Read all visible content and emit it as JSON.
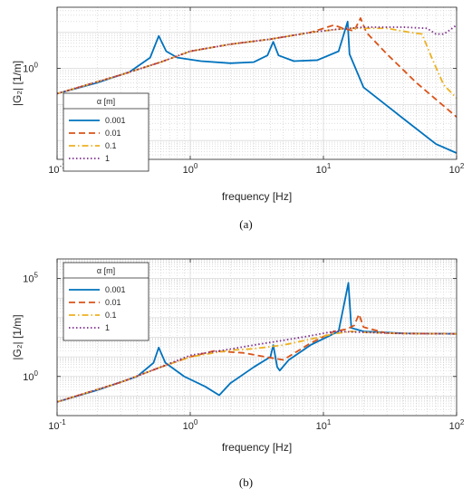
{
  "chart_data": [
    {
      "type": "line",
      "panel_label": "(a)",
      "xlabel": "frequency [Hz]",
      "ylabel": "|G₂| [1/m]",
      "xscale": "log",
      "yscale": "log",
      "xlim": [
        0.1,
        100
      ],
      "ylim": [
        0.003,
        50
      ],
      "grid": true,
      "legend_title": "α [m]",
      "legend_position": "lower-left",
      "x_ticks": [
        {
          "value": 0.1,
          "base": "10",
          "exp": "-1"
        },
        {
          "value": 1,
          "base": "10",
          "exp": "0"
        },
        {
          "value": 10,
          "base": "10",
          "exp": "1"
        },
        {
          "value": 100,
          "base": "10",
          "exp": "2"
        }
      ],
      "y_ticks": [
        {
          "value": 1,
          "base": "10",
          "exp": "0"
        }
      ],
      "series": [
        {
          "name": "0.001",
          "color": "#0072BD",
          "dash": "solid",
          "points": [
            [
              0.1,
              0.2
            ],
            [
              0.2,
              0.4
            ],
            [
              0.35,
              0.8
            ],
            [
              0.5,
              2
            ],
            [
              0.58,
              8
            ],
            [
              0.66,
              3
            ],
            [
              0.8,
              2
            ],
            [
              1.2,
              1.6
            ],
            [
              2,
              1.4
            ],
            [
              3,
              1.5
            ],
            [
              3.8,
              2.3
            ],
            [
              4.2,
              5.5
            ],
            [
              4.6,
              2.3
            ],
            [
              6,
              1.6
            ],
            [
              9,
              1.7
            ],
            [
              13,
              3
            ],
            [
              15.2,
              20
            ],
            [
              15.7,
              2.5
            ],
            [
              20,
              0.3
            ],
            [
              40,
              0.04
            ],
            [
              70,
              0.008
            ],
            [
              100,
              0.0045
            ]
          ]
        },
        {
          "name": "0.01",
          "color": "#D95319",
          "dash": "dashed",
          "points": [
            [
              0.1,
              0.2
            ],
            [
              0.3,
              0.66
            ],
            [
              0.6,
              1.5
            ],
            [
              1,
              3
            ],
            [
              2,
              4.7
            ],
            [
              4,
              6.5
            ],
            [
              8,
              10
            ],
            [
              12,
              16
            ],
            [
              14,
              13
            ],
            [
              17,
              11
            ],
            [
              19,
              25
            ],
            [
              21,
              10
            ],
            [
              30,
              2.5
            ],
            [
              50,
              0.4
            ],
            [
              100,
              0.045
            ]
          ]
        },
        {
          "name": "0.1",
          "color": "#EDB120",
          "dash": "dashdot",
          "points": [
            [
              0.1,
              0.2
            ],
            [
              0.3,
              0.66
            ],
            [
              0.6,
              1.5
            ],
            [
              1,
              3
            ],
            [
              2,
              4.7
            ],
            [
              4,
              6.5
            ],
            [
              8,
              10
            ],
            [
              15,
              13
            ],
            [
              30,
              13
            ],
            [
              45,
              10
            ],
            [
              55,
              9
            ],
            [
              65,
              2
            ],
            [
              80,
              0.35
            ],
            [
              100,
              0.15
            ]
          ]
        },
        {
          "name": "1",
          "color": "#7E2F8E",
          "dash": "dotted",
          "points": [
            [
              0.1,
              0.2
            ],
            [
              0.3,
              0.66
            ],
            [
              0.6,
              1.5
            ],
            [
              1,
              3
            ],
            [
              2,
              4.7
            ],
            [
              4,
              6.5
            ],
            [
              8,
              10
            ],
            [
              12,
              12
            ],
            [
              20,
              14
            ],
            [
              40,
              14
            ],
            [
              60,
              13
            ],
            [
              70,
              9
            ],
            [
              80,
              9
            ],
            [
              90,
              12
            ],
            [
              100,
              16
            ]
          ]
        }
      ]
    },
    {
      "type": "line",
      "panel_label": "(b)",
      "xlabel": "frequency [Hz]",
      "ylabel": "|G₂| [1/m]",
      "xscale": "log",
      "yscale": "log",
      "xlim": [
        0.1,
        100
      ],
      "ylim": [
        0.01,
        1000000
      ],
      "grid": true,
      "legend_title": "α [m]",
      "legend_position": "top-left",
      "x_ticks": [
        {
          "value": 0.1,
          "base": "10",
          "exp": "-1"
        },
        {
          "value": 1,
          "base": "10",
          "exp": "0"
        },
        {
          "value": 10,
          "base": "10",
          "exp": "1"
        },
        {
          "value": 100,
          "base": "10",
          "exp": "2"
        }
      ],
      "y_ticks": [
        {
          "value": 1,
          "base": "10",
          "exp": "0"
        },
        {
          "value": 100000,
          "base": "10",
          "exp": "5"
        }
      ],
      "series": [
        {
          "name": "0.001",
          "color": "#0072BD",
          "dash": "solid",
          "points": [
            [
              0.1,
              0.05
            ],
            [
              0.2,
              0.2
            ],
            [
              0.4,
              1
            ],
            [
              0.53,
              5
            ],
            [
              0.58,
              30
            ],
            [
              0.65,
              5
            ],
            [
              0.9,
              1
            ],
            [
              1.3,
              0.3
            ],
            [
              1.65,
              0.11
            ],
            [
              2,
              0.45
            ],
            [
              3,
              3
            ],
            [
              4,
              10
            ],
            [
              4.2,
              40
            ],
            [
              4.5,
              3
            ],
            [
              4.7,
              2
            ],
            [
              5.5,
              7
            ],
            [
              8,
              40
            ],
            [
              13,
              200
            ],
            [
              15.4,
              60000
            ],
            [
              16.2,
              300
            ],
            [
              20,
              200
            ],
            [
              40,
              160
            ],
            [
              100,
              150
            ]
          ]
        },
        {
          "name": "0.01",
          "color": "#D95319",
          "dash": "dashed",
          "points": [
            [
              0.1,
              0.05
            ],
            [
              0.3,
              0.5
            ],
            [
              0.6,
              3
            ],
            [
              1,
              10
            ],
            [
              1.5,
              20
            ],
            [
              2.5,
              16
            ],
            [
              4,
              9
            ],
            [
              5,
              7
            ],
            [
              8,
              50
            ],
            [
              12,
              200
            ],
            [
              15,
              260
            ],
            [
              17,
              400
            ],
            [
              18.5,
              1500
            ],
            [
              20,
              330
            ],
            [
              30,
              160
            ],
            [
              100,
              150
            ]
          ]
        },
        {
          "name": "0.1",
          "color": "#EDB120",
          "dash": "dashdot",
          "points": [
            [
              0.1,
              0.05
            ],
            [
              0.3,
              0.5
            ],
            [
              0.6,
              3
            ],
            [
              1,
              10
            ],
            [
              2,
              22
            ],
            [
              3,
              26
            ],
            [
              5,
              40
            ],
            [
              8,
              80
            ],
            [
              12,
              150
            ],
            [
              16,
              200
            ],
            [
              20,
              180
            ],
            [
              40,
              155
            ],
            [
              100,
              150
            ]
          ]
        },
        {
          "name": "1",
          "color": "#7E2F8E",
          "dash": "dotted",
          "points": [
            [
              0.1,
              0.05
            ],
            [
              0.3,
              0.5
            ],
            [
              0.6,
              3
            ],
            [
              1,
              12
            ],
            [
              2,
              25
            ],
            [
              3,
              40
            ],
            [
              5,
              70
            ],
            [
              8,
              120
            ],
            [
              12,
              200
            ],
            [
              20,
              180
            ],
            [
              40,
              155
            ],
            [
              100,
              150
            ]
          ]
        }
      ]
    }
  ]
}
